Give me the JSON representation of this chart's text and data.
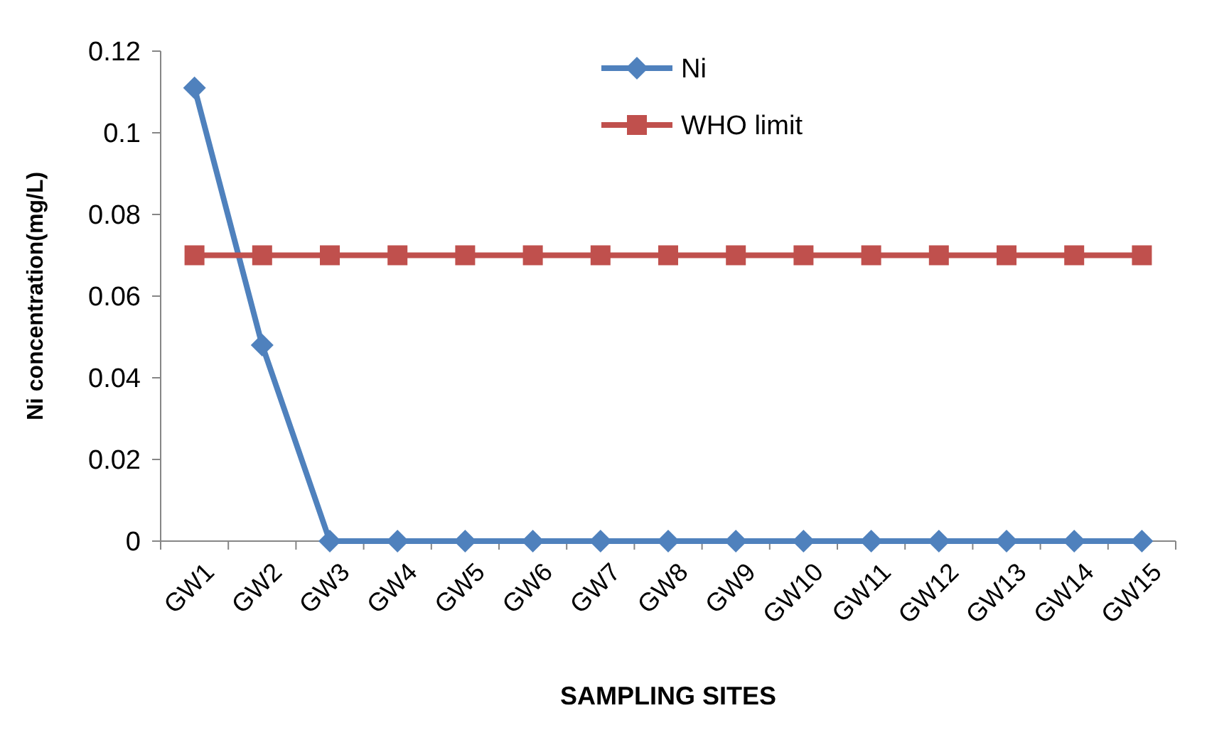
{
  "chart_data": {
    "type": "line",
    "xlabel": "SAMPLING SITES",
    "ylabel": "Ni concentration(mg/L)",
    "categories": [
      "GW1",
      "GW2",
      "GW3",
      "GW4",
      "GW5",
      "GW6",
      "GW7",
      "GW8",
      "GW9",
      "GW10",
      "GW11",
      "GW12",
      "GW13",
      "GW14",
      "GW15"
    ],
    "series": [
      {
        "name": "Ni",
        "color": "#4f81bd",
        "marker": "diamond",
        "values": [
          0.111,
          0.048,
          0,
          0,
          0,
          0,
          0,
          0,
          0,
          0,
          0,
          0,
          0,
          0,
          0
        ]
      },
      {
        "name": "WHO limit",
        "color": "#c0504d",
        "marker": "square",
        "values": [
          0.07,
          0.07,
          0.07,
          0.07,
          0.07,
          0.07,
          0.07,
          0.07,
          0.07,
          0.07,
          0.07,
          0.07,
          0.07,
          0.07,
          0.07
        ]
      }
    ],
    "ylim": [
      0,
      0.12
    ],
    "yticks": [
      0,
      0.02,
      0.04,
      0.06,
      0.08,
      0.1,
      0.12
    ],
    "grid": false,
    "legend": "top"
  }
}
